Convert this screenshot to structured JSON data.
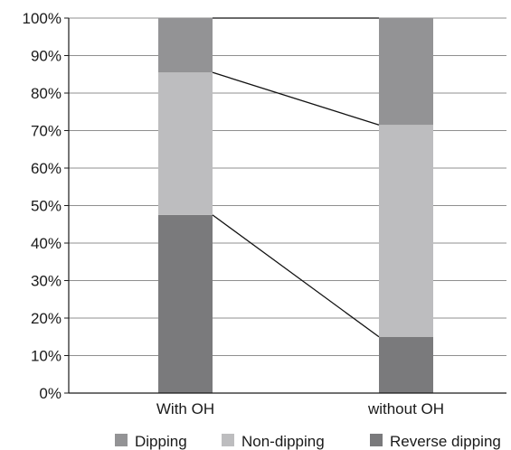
{
  "chart_data": {
    "type": "bar",
    "stacked": true,
    "categories": [
      "With OH",
      "without OH"
    ],
    "series": [
      {
        "name": "Reverse dipping",
        "color": "#7a7a7c",
        "values": [
          47.5,
          15
        ]
      },
      {
        "name": "Non-dipping",
        "color": "#bdbdbf",
        "values": [
          38,
          56.5
        ]
      },
      {
        "name": "Dipping",
        "color": "#939395",
        "values": [
          14.5,
          28.5
        ]
      }
    ],
    "ylim": [
      0,
      100
    ],
    "yticks": [
      "0%",
      "10%",
      "20%",
      "30%",
      "40%",
      "50%",
      "60%",
      "70%",
      "80%",
      "90%",
      "100%"
    ],
    "grid": true,
    "connector_lines": true,
    "legend_position": "bottom",
    "legend_order": [
      "Dipping",
      "Non-dipping",
      "Reverse dipping"
    ],
    "xlabel": "",
    "ylabel": "",
    "title": ""
  }
}
